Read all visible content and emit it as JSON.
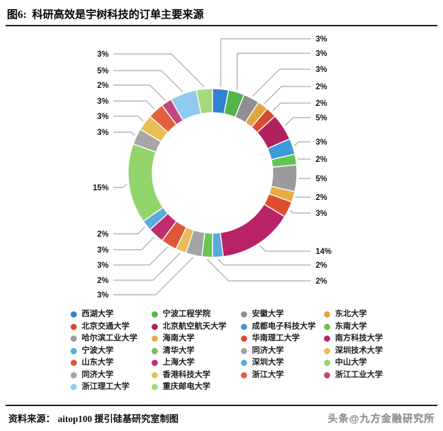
{
  "figure": {
    "label": "图6:",
    "title": "科研高效是宇树科技的订单主要来源"
  },
  "footer": {
    "source_label": "资料来源：",
    "source_text": "aitop100 援引硅基研究室制图",
    "watermark": "头条@九方金融研究所"
  },
  "chart_data": {
    "type": "pie",
    "subtype": "donut",
    "title": "科研高效是宇树科技的订单主要来源",
    "unit": "%",
    "direction": "clockwise",
    "start_angle_deg": 0,
    "values_sum": 98,
    "legend_position": "bottom",
    "legend_columns": 4,
    "segments": [
      {
        "label": "西湖大学",
        "value": 3,
        "color": "#3381d4"
      },
      {
        "label": "宁波工程学院",
        "value": 3,
        "color": "#52b54a"
      },
      {
        "label": "安徽大学",
        "value": 3,
        "color": "#8f8f8f"
      },
      {
        "label": "东北大学",
        "value": 2,
        "color": "#e3a43c"
      },
      {
        "label": "北京交通大学",
        "value": 2,
        "color": "#d74a31"
      },
      {
        "label": "北京航空航天大学",
        "value": 5,
        "color": "#b3205e"
      },
      {
        "label": "成都电子科技大学",
        "value": 3,
        "color": "#3e9bda"
      },
      {
        "label": "东南大学",
        "value": 2,
        "color": "#67c351"
      },
      {
        "label": "哈尔滨工业大学",
        "value": 5,
        "color": "#9a9a9a"
      },
      {
        "label": "海南大学",
        "value": 2,
        "color": "#e6ad43"
      },
      {
        "label": "华南理工大学",
        "value": 3,
        "color": "#de4e2e"
      },
      {
        "label": "南方科技大学",
        "value": 14,
        "color": "#ba2267"
      },
      {
        "label": "宁波大学",
        "value": 2,
        "color": "#57aade"
      },
      {
        "label": "清华大学",
        "value": 2,
        "color": "#6cc356"
      },
      {
        "label": "同济大学",
        "value": 3,
        "color": "#a3a3a3"
      },
      {
        "label": "深圳技术大学",
        "value": 2,
        "color": "#e9bd52"
      },
      {
        "label": "山东大学",
        "value": 3,
        "color": "#df573b"
      },
      {
        "label": "上海大学",
        "value": 3,
        "color": "#c02e6d"
      },
      {
        "label": "深圳大学",
        "value": 2,
        "color": "#58ace0"
      },
      {
        "label": "中山大学",
        "value": 15,
        "color": "#92d56d"
      },
      {
        "label": "同济大学",
        "value": 3,
        "color": "#a6a6a6"
      },
      {
        "label": "香港科技大学",
        "value": 3,
        "color": "#e8bf55"
      },
      {
        "label": "浙江大学",
        "value": 3,
        "color": "#e1613f"
      },
      {
        "label": "浙江工业大学",
        "value": 2,
        "color": "#c1477e"
      },
      {
        "label": "浙江理工大学",
        "value": 5,
        "color": "#8ecbee"
      },
      {
        "label": "重庆邮电大学",
        "value": 3,
        "color": "#a5d97b"
      }
    ]
  }
}
